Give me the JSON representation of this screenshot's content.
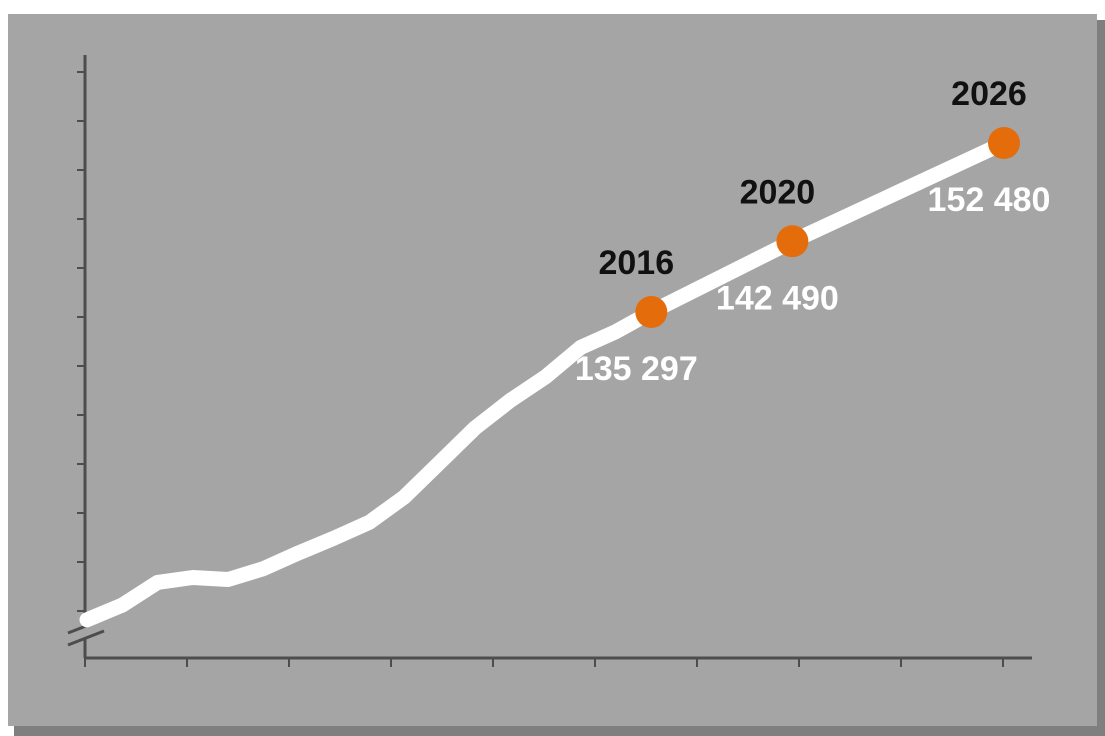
{
  "chart_data": {
    "type": "line",
    "title": "",
    "xlabel": "",
    "ylabel": "",
    "grid": false,
    "legend": "none",
    "y_axis_break": true,
    "tick_labels_shown": false,
    "colors": {
      "panel": "#a5a5a5",
      "panel_shadow": "#7f7f7f",
      "line": "#ffffff",
      "marker": "#e46c0a",
      "axis": "#4d4d4d",
      "year_label": "#111111",
      "value_label": "#ffffff"
    },
    "series": [
      {
        "values_approx": [
          {
            "x": 2000,
            "y": 104000
          },
          {
            "x": 2001,
            "y": 105500
          },
          {
            "x": 2002,
            "y": 107800
          },
          {
            "x": 2003,
            "y": 108300
          },
          {
            "x": 2004,
            "y": 108100
          },
          {
            "x": 2005,
            "y": 109200
          },
          {
            "x": 2006,
            "y": 110800
          },
          {
            "x": 2007,
            "y": 112300
          },
          {
            "x": 2008,
            "y": 113900
          },
          {
            "x": 2009,
            "y": 116500
          },
          {
            "x": 2010,
            "y": 120000
          },
          {
            "x": 2011,
            "y": 123500
          },
          {
            "x": 2012,
            "y": 126300
          },
          {
            "x": 2013,
            "y": 128700
          },
          {
            "x": 2014,
            "y": 131700
          },
          {
            "x": 2015,
            "y": 133300
          },
          {
            "x": 2016,
            "y": 135297
          },
          {
            "x": 2020,
            "y": 142490
          },
          {
            "x": 2026,
            "y": 152480
          }
        ]
      }
    ],
    "highlights": [
      {
        "year": "2016",
        "value": 135297,
        "value_label": "135 297"
      },
      {
        "year": "2020",
        "value": 142490,
        "value_label": "142 490"
      },
      {
        "year": "2026",
        "value": 152480,
        "value_label": "152 480"
      }
    ]
  }
}
